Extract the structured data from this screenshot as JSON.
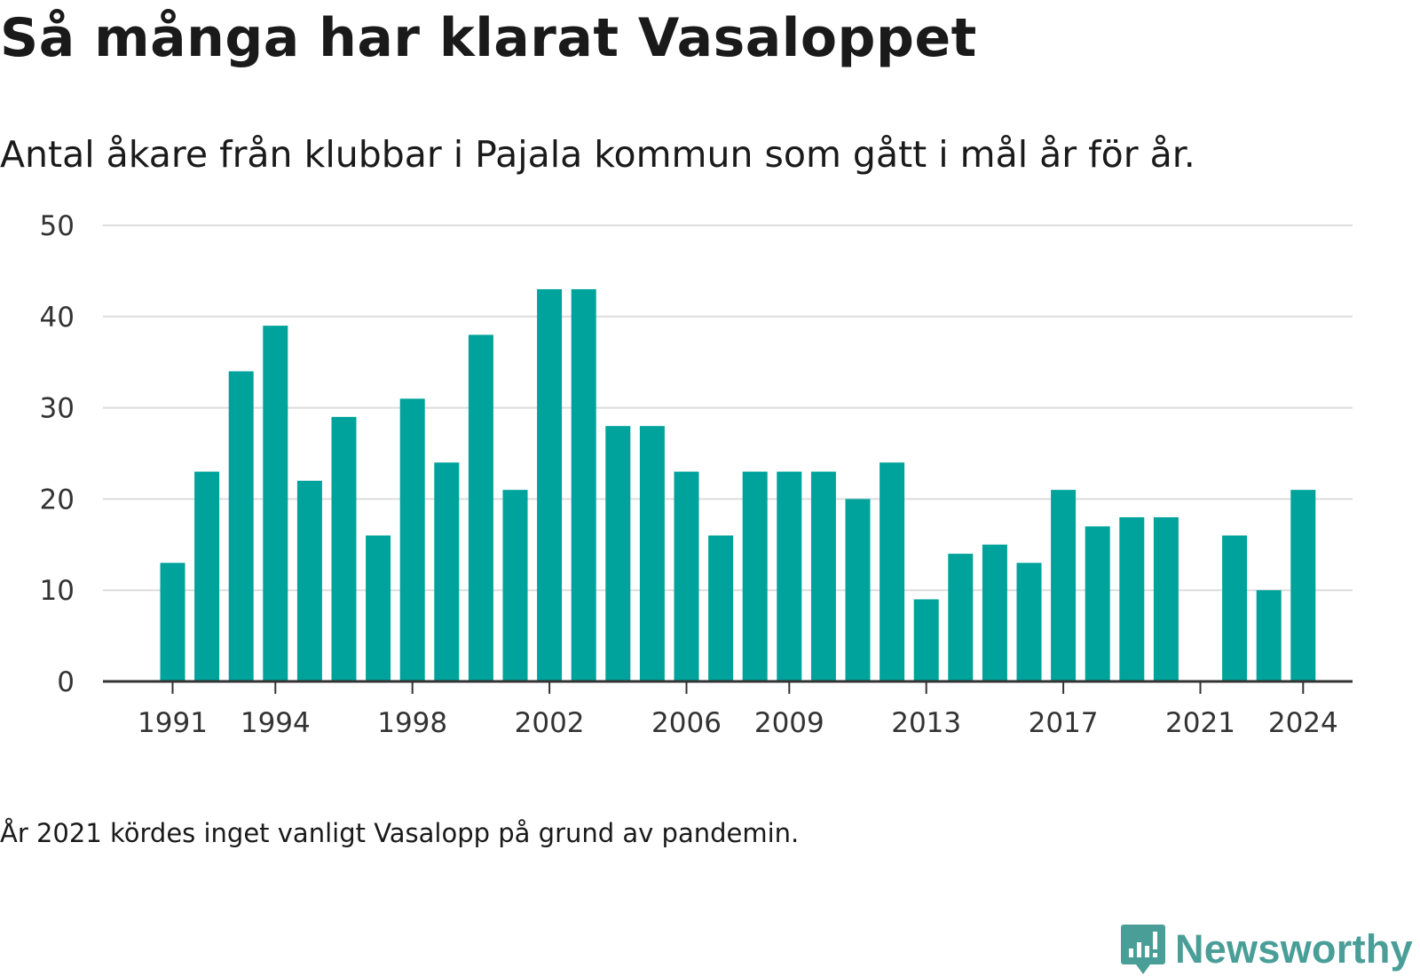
{
  "title": "Så många har klarat Vasaloppet",
  "subtitle": "Antal åkare från klubbar i Pajala kommun som gått i mål år för år.",
  "note": "År 2021 kördes inget vanligt Vasalopp på grund av pandemin.",
  "brand": {
    "name": "Newsworthy",
    "color": "#4a9e98",
    "icon": "newsworthy-logo-icon"
  },
  "colors": {
    "bar": "#00a39b",
    "grid": "#dddddd",
    "axis": "#333333"
  },
  "chart_data": {
    "type": "bar",
    "title": "Så många har klarat Vasaloppet",
    "subtitle": "Antal åkare från klubbar i Pajala kommun som gått i mål år för år.",
    "xlabel": "",
    "ylabel": "",
    "ylim": [
      0,
      50
    ],
    "yticks": [
      0,
      10,
      20,
      30,
      40,
      50
    ],
    "grid": true,
    "legend": "none",
    "categories": [
      1991,
      1992,
      1993,
      1994,
      1995,
      1996,
      1997,
      1998,
      1999,
      2000,
      2001,
      2002,
      2003,
      2004,
      2005,
      2006,
      2007,
      2008,
      2009,
      2010,
      2011,
      2012,
      2013,
      2014,
      2015,
      2016,
      2017,
      2018,
      2019,
      2020,
      2021,
      2022,
      2023,
      2024
    ],
    "values": [
      13,
      23,
      34,
      39,
      22,
      29,
      16,
      31,
      24,
      38,
      21,
      43,
      43,
      28,
      28,
      23,
      16,
      23,
      23,
      23,
      20,
      24,
      9,
      14,
      15,
      13,
      21,
      17,
      18,
      18,
      0,
      16,
      10,
      21
    ],
    "xtick_labels": [
      "1991",
      "1994",
      "1998",
      "2002",
      "2006",
      "2009",
      "2013",
      "2017",
      "2021",
      "2024"
    ]
  }
}
